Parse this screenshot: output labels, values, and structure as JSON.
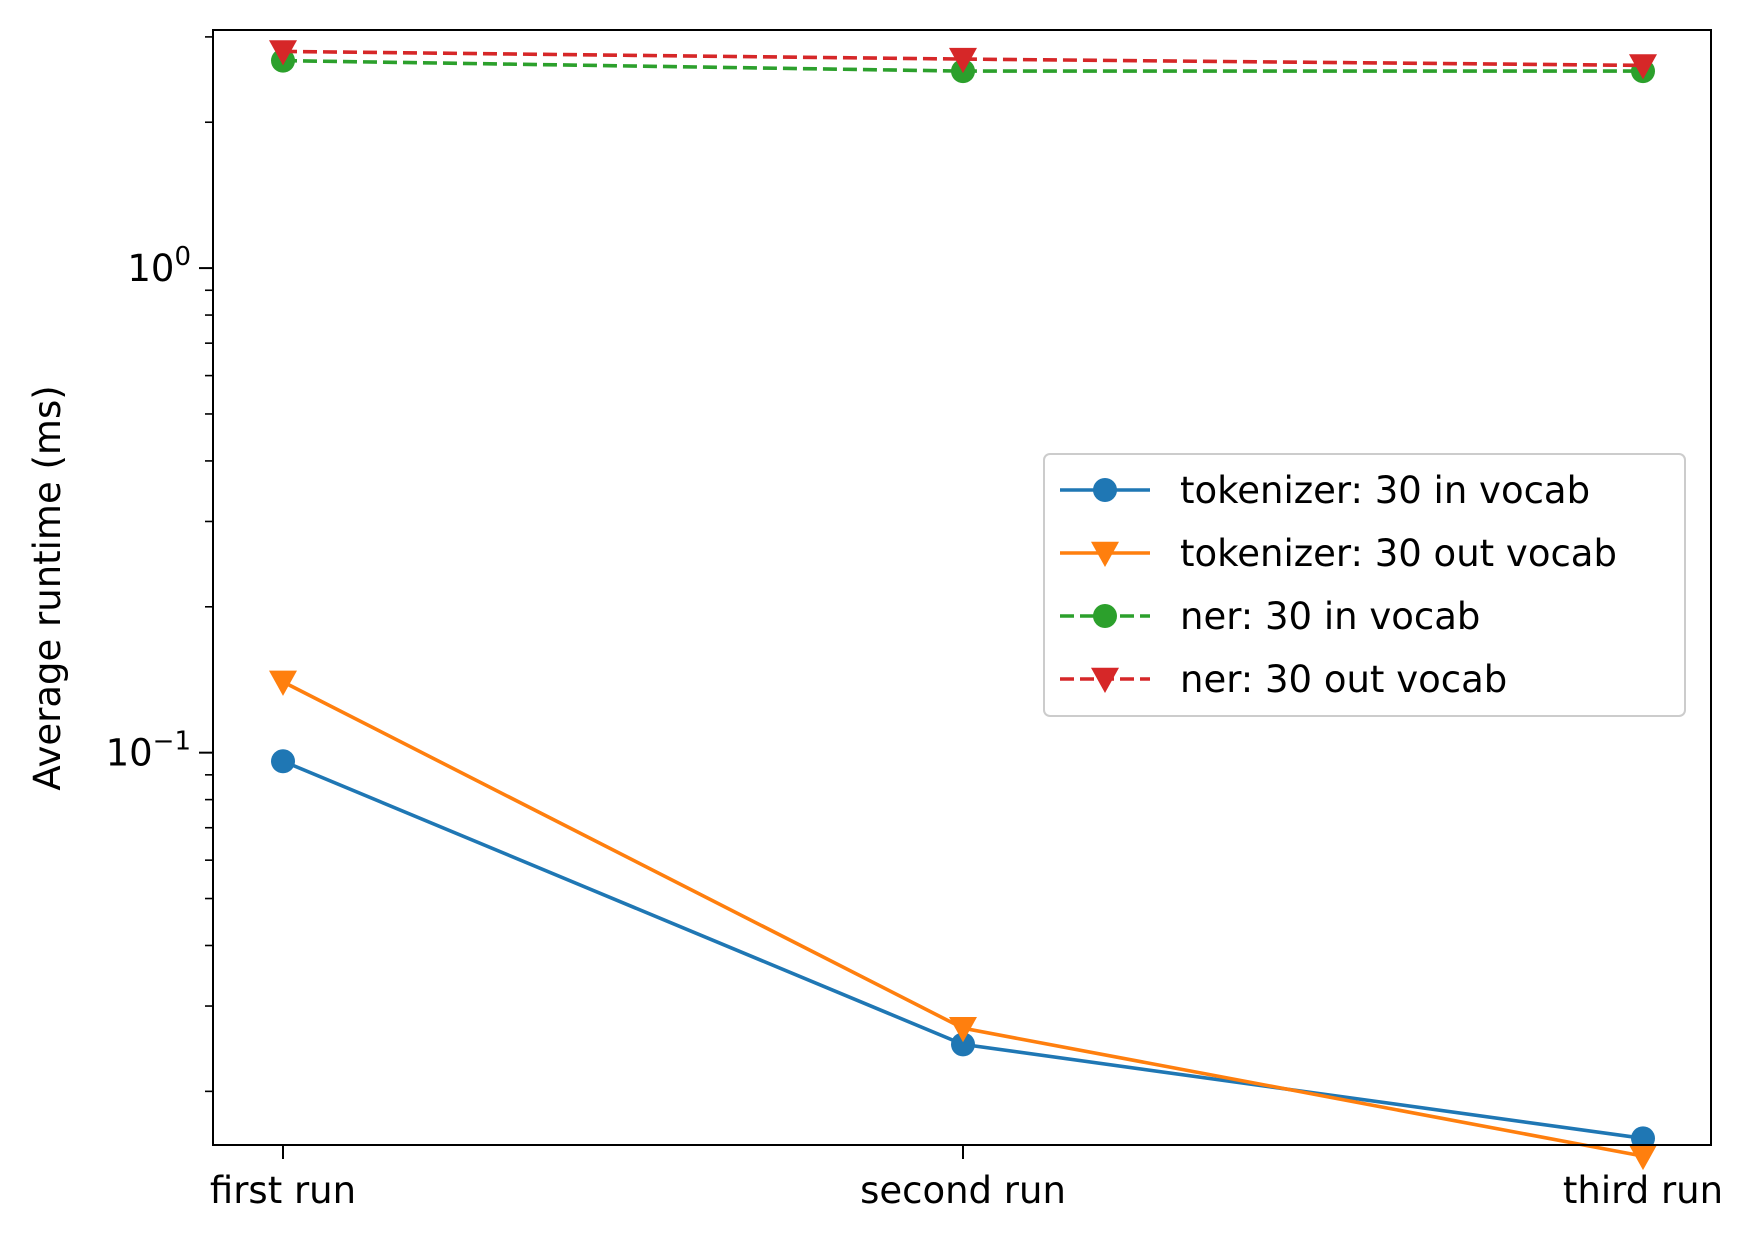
{
  "chart_data": {
    "type": "line",
    "title": "",
    "xlabel": "",
    "ylabel": "Average runtime (ms)",
    "yscale": "log",
    "categories": [
      "first run",
      "second run",
      "third run"
    ],
    "y_ticks": [
      {
        "value": 1,
        "base": "10",
        "exponent": "0"
      },
      {
        "value": 0.1,
        "base": "10",
        "exponent": "−1"
      }
    ],
    "ylim": [
      0.0155,
      3.1
    ],
    "grid": false,
    "legend_position": "center-right",
    "series": [
      {
        "name": "tokenizer: 30 in vocab",
        "values": [
          0.096,
          0.025,
          0.016
        ],
        "color": "#1f77b4",
        "marker": "circle",
        "line_style": "solid"
      },
      {
        "name": "tokenizer: 30 out vocab",
        "values": [
          0.14,
          0.027,
          0.0147
        ],
        "color": "#ff7f0e",
        "marker": "triangle-down",
        "line_style": "solid"
      },
      {
        "name": "ner: 30 in vocab",
        "values": [
          2.68,
          2.55,
          2.55
        ],
        "color": "#2ca02c",
        "marker": "circle",
        "line_style": "dashed"
      },
      {
        "name": "ner: 30 out vocab",
        "values": [
          2.8,
          2.7,
          2.62
        ],
        "color": "#d62728",
        "marker": "triangle-down",
        "line_style": "dashed"
      }
    ]
  }
}
